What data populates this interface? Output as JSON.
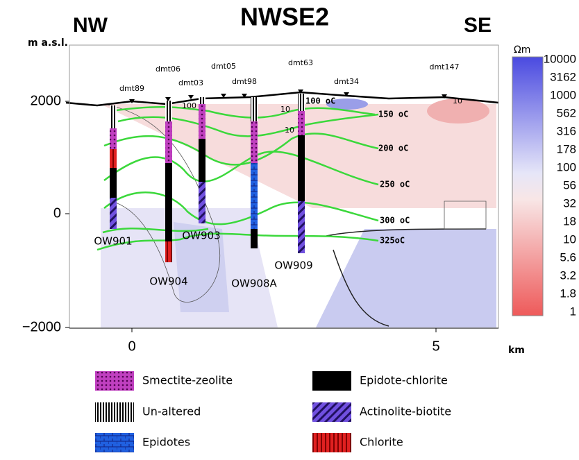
{
  "header": {
    "title": "NWSE2",
    "left": "NW",
    "right": "SE"
  },
  "axes": {
    "y_label": "m a.s.l.",
    "x_label": "km",
    "y_ticks": [
      "2000",
      "0",
      "−2000"
    ],
    "x_ticks": [
      "0",
      "5"
    ]
  },
  "stations": [
    "dmt89",
    "dmt06",
    "dmt03",
    "dmt05",
    "dmt98",
    "dmt63",
    "dmt34",
    "dmt147"
  ],
  "wells": [
    "OW901",
    "OW904",
    "OW903",
    "OW908A",
    "OW909"
  ],
  "isotherms": [
    "100 oC",
    "150 oC",
    "200 oC",
    "250 oC",
    "300 oC",
    "325oC"
  ],
  "contour_labels": [
    "100",
    "10",
    "10",
    "10"
  ],
  "colorbar": {
    "unit": "Ωm",
    "labels": [
      "10000",
      "3162",
      "1000",
      "562",
      "316",
      "178",
      "100",
      "56",
      "32",
      "18",
      "10",
      "5.6",
      "3.2",
      "1.8",
      "1"
    ]
  },
  "legend": [
    "Smectite-zeolite",
    "Un-altered",
    "Epidotes",
    "Epidote-chlorite",
    "Actinolite-biotite",
    "Chlorite"
  ]
}
